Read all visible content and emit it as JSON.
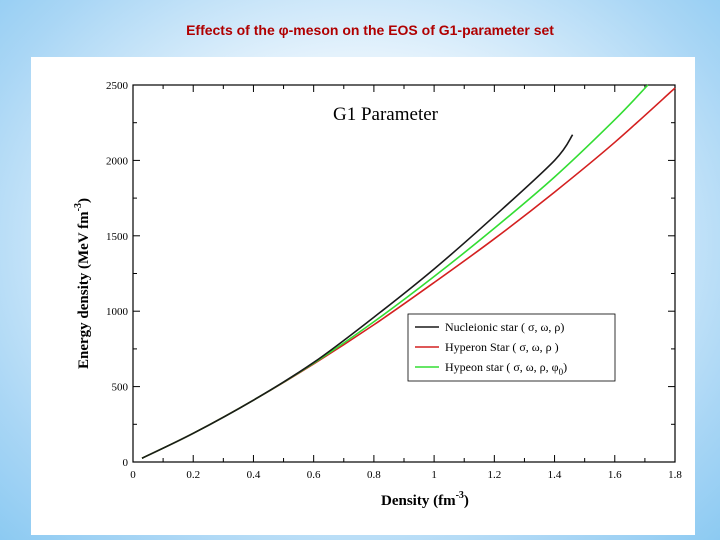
{
  "slide": {
    "title": "Effects of the φ-meson on the EOS of G1-parameter set"
  },
  "colors": {
    "nucleonic": "#1a1a1a",
    "hyperon": "#d42020",
    "hyperon_phi": "#33dd33"
  },
  "chart_data": {
    "type": "line",
    "title": "G1  Parameter",
    "xlabel": "Density (fm",
    "xlabel_sup": "-3",
    "xlabel_close": ")",
    "ylabel": "Energy density (MeV fm",
    "ylabel_sup": "-3",
    "ylabel_close": ")",
    "xlim": [
      0,
      1.8
    ],
    "ylim": [
      0,
      2500
    ],
    "xticks": [
      0,
      0.2,
      0.4,
      0.6,
      0.8,
      1,
      1.2,
      1.4,
      1.6,
      1.8
    ],
    "xtick_labels": [
      "0",
      "0.2",
      "0.4",
      "0.6",
      "0.8",
      "1",
      "1.2",
      "1.4",
      "1.6",
      "1.8"
    ],
    "yticks": [
      0,
      500,
      1000,
      1500,
      2000,
      2500
    ],
    "ytick_labels": [
      "0",
      "500",
      "1000",
      "1500",
      "2000",
      "2500"
    ],
    "legend_position": "center-right",
    "series": [
      {
        "name": "Nucleionic star ( σ, ω, ρ)",
        "color_key": "nucleonic",
        "x": [
          0.03,
          0.2,
          0.4,
          0.6,
          0.8,
          1.0,
          1.2,
          1.4,
          1.46
        ],
        "y": [
          25,
          190,
          410,
          660,
          960,
          1280,
          1630,
          2000,
          2170
        ]
      },
      {
        "name": "Hyperon Star ( σ, ω, ρ )",
        "color_key": "hyperon",
        "x": [
          0.03,
          0.2,
          0.4,
          0.6,
          0.8,
          1.0,
          1.2,
          1.4,
          1.6,
          1.8
        ],
        "y": [
          25,
          190,
          410,
          650,
          910,
          1190,
          1480,
          1790,
          2120,
          2480
        ]
      },
      {
        "name": "Hypeon star ( σ, ω, ρ, φ",
        "name_sub": "0",
        "name_close": ")",
        "color_key": "hyperon_phi",
        "x": [
          0.03,
          0.2,
          0.4,
          0.6,
          0.8,
          1.0,
          1.2,
          1.4,
          1.6,
          1.71
        ],
        "y": [
          25,
          190,
          410,
          655,
          930,
          1230,
          1550,
          1890,
          2270,
          2500
        ]
      }
    ]
  }
}
